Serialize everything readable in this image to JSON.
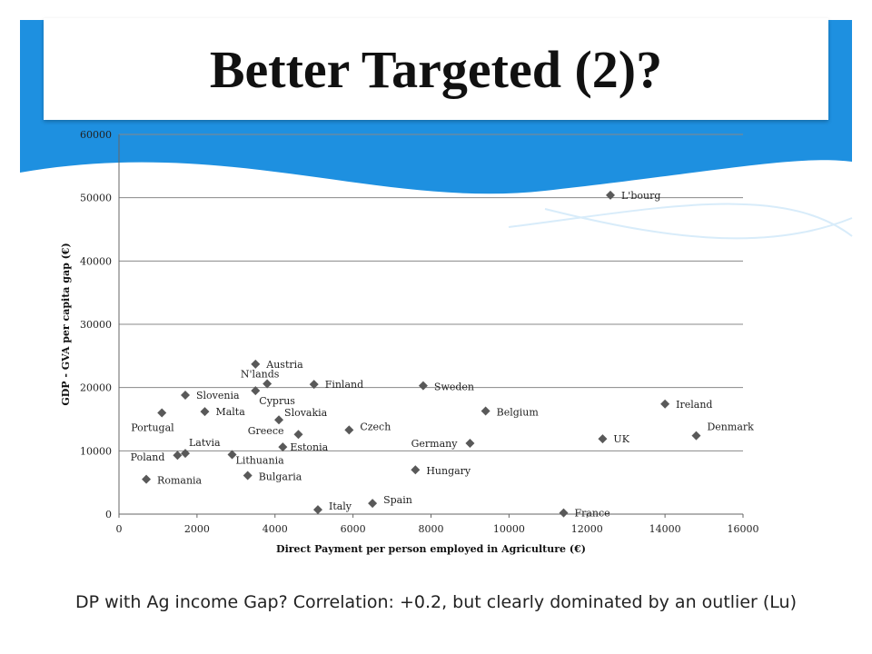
{
  "slide": {
    "title": "Better Targeted (2)?",
    "caption": "DP with Ag income Gap? Correlation: +0.2, but clearly dominated by an outlier (Lu)"
  },
  "colors": {
    "accent": "#1e90e0",
    "marker": "#595959",
    "grid": "#888888"
  },
  "chart_data": {
    "type": "scatter",
    "xlabel": "Direct Payment per person employed in Agriculture (€)",
    "ylabel": "GDP - GVA per capita gap (€)",
    "xlim": [
      0,
      16000
    ],
    "ylim": [
      0,
      60000
    ],
    "xticks": [
      0,
      2000,
      4000,
      6000,
      8000,
      10000,
      12000,
      14000,
      16000
    ],
    "yticks": [
      0,
      10000,
      20000,
      30000,
      40000,
      50000,
      60000
    ],
    "grid": "horizontal",
    "points": [
      {
        "label": "L'bourg",
        "x": 12600,
        "y": 50400
      },
      {
        "label": "Ireland",
        "x": 14000,
        "y": 17400
      },
      {
        "label": "Denmark",
        "x": 14800,
        "y": 12400
      },
      {
        "label": "UK",
        "x": 12400,
        "y": 11900
      },
      {
        "label": "France",
        "x": 11400,
        "y": 200
      },
      {
        "label": "Sweden",
        "x": 7800,
        "y": 20300
      },
      {
        "label": "Belgium",
        "x": 9400,
        "y": 16300
      },
      {
        "label": "Germany",
        "x": 9000,
        "y": 11200
      },
      {
        "label": "Hungary",
        "x": 7600,
        "y": 7000
      },
      {
        "label": "Spain",
        "x": 6500,
        "y": 1700
      },
      {
        "label": "Italy",
        "x": 5100,
        "y": 700
      },
      {
        "label": "Czech",
        "x": 5900,
        "y": 13300
      },
      {
        "label": "Finland",
        "x": 5000,
        "y": 20500
      },
      {
        "label": "Austria",
        "x": 3500,
        "y": 23700
      },
      {
        "label": "N'lands",
        "x": 3800,
        "y": 20600
      },
      {
        "label": "Cyprus",
        "x": 3500,
        "y": 19500
      },
      {
        "label": "Slovakia",
        "x": 4100,
        "y": 14900
      },
      {
        "label": "Greece",
        "x": 4600,
        "y": 12600
      },
      {
        "label": "Estonia",
        "x": 4200,
        "y": 10600
      },
      {
        "label": "Slovenia",
        "x": 1700,
        "y": 18800
      },
      {
        "label": "Malta",
        "x": 2200,
        "y": 16200
      },
      {
        "label": "Portugal",
        "x": 1100,
        "y": 16000
      },
      {
        "label": "Latvia",
        "x": 1700,
        "y": 9600
      },
      {
        "label": "Poland",
        "x": 1500,
        "y": 9300
      },
      {
        "label": "Lithuania",
        "x": 2900,
        "y": 9400
      },
      {
        "label": "Bulgaria",
        "x": 3300,
        "y": 6100
      },
      {
        "label": "Romania",
        "x": 700,
        "y": 5500
      }
    ]
  }
}
